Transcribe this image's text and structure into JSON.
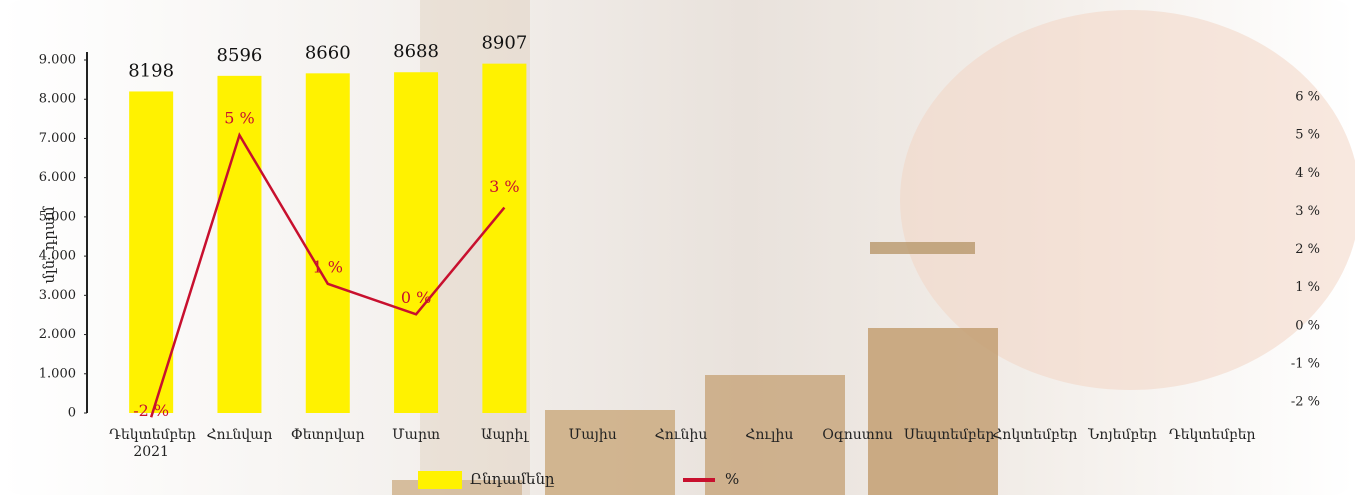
{
  "chart_data": {
    "type": "bar-line",
    "y_label": "մլն. դրամ",
    "categories": [
      "Դեկտեմբեր 2021",
      "Հունվար",
      "Փետրվար",
      "Մարտ",
      "Ապրիլ",
      "Մայիս",
      "Հունիս",
      "Հուլիս",
      "Օգոստոս",
      "Սեպտեմբեր",
      "Հոկտեմբեր",
      "Նոյեմբեր",
      "Դեկտեմբեր"
    ],
    "series": [
      {
        "name": "Ընդամենը",
        "color": "#fff200",
        "type": "bar",
        "values": [
          8198,
          8596,
          8660,
          8688,
          8907,
          null,
          null,
          null,
          null,
          null,
          null,
          null,
          null
        ]
      },
      {
        "name": "%",
        "color": "#c8102e",
        "type": "line",
        "axis": "y2",
        "values": [
          -2.4,
          5,
          1.1,
          0.3,
          3.1,
          null,
          null,
          null,
          null,
          null,
          null,
          null,
          null
        ],
        "value_labels": [
          "-2 %",
          "5 %",
          "1 %",
          "0 %",
          "3 %",
          null,
          null,
          null,
          null,
          null,
          null,
          null,
          null
        ]
      }
    ],
    "ylim": [
      0,
      9000
    ],
    "yticks": [
      0,
      {
        "value": 1000,
        "label": "1.000"
      },
      {
        "value": 2000,
        "label": "2.000"
      },
      {
        "value": 3000,
        "label": "3.000"
      },
      {
        "value": 4000,
        "label": "4.000"
      },
      {
        "value": 5000,
        "label": "5.000"
      },
      {
        "value": 6000,
        "label": "6.000"
      },
      {
        "value": 7000,
        "label": "7.000"
      },
      {
        "value": 8000,
        "label": "8.000"
      },
      {
        "value": 9000,
        "label": "9.000"
      }
    ],
    "y2lim": [
      -2,
      6
    ],
    "y2ticks": [
      {
        "value": -2,
        "label": "-2 %"
      },
      {
        "value": -1,
        "label": "-1 %"
      },
      {
        "value": 0,
        "label": "0 %"
      },
      {
        "value": 1,
        "label": "1 %"
      },
      {
        "value": 2,
        "label": "2 %"
      },
      {
        "value": 3,
        "label": "3 %"
      },
      {
        "value": 4,
        "label": "4 %"
      },
      {
        "value": 5,
        "label": "5 %"
      },
      {
        "value": 6,
        "label": "6 %"
      }
    ]
  }
}
